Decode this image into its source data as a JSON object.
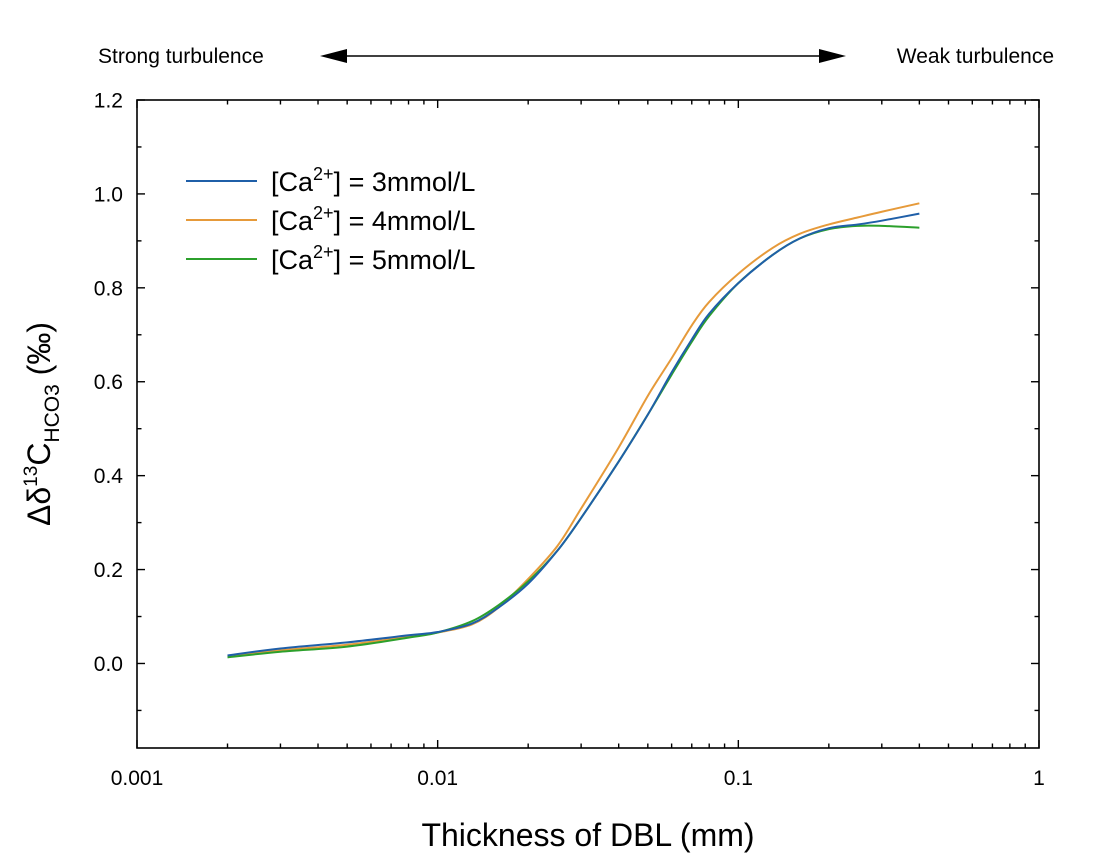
{
  "chart_data": {
    "type": "line",
    "x_scale": "log",
    "xlim": [
      0.001,
      1
    ],
    "ylim": [
      -0.18,
      1.2
    ],
    "xlabel": "Thickness of DBL (mm)",
    "ylabel": {
      "prefix": "Δδ",
      "sup": "13",
      "base": "C",
      "sub": "HCO3",
      "unit": " (‰)"
    },
    "x_ticks": [
      {
        "value": 0.001,
        "label": "0.001"
      },
      {
        "value": 0.01,
        "label": "0.01"
      },
      {
        "value": 0.1,
        "label": "0.1"
      },
      {
        "value": 1,
        "label": "1"
      }
    ],
    "y_ticks": [
      {
        "value": 0.0,
        "label": "0.0"
      },
      {
        "value": 0.2,
        "label": "0.2"
      },
      {
        "value": 0.4,
        "label": "0.4"
      },
      {
        "value": 0.6,
        "label": "0.6"
      },
      {
        "value": 0.8,
        "label": "0.8"
      },
      {
        "value": 1.0,
        "label": "1.0"
      },
      {
        "value": 1.2,
        "label": "1.2"
      }
    ],
    "y_minor_step": 0.1,
    "annotation": {
      "left": "Strong turbulence",
      "right": "Weak turbulence"
    },
    "legend_position": "top-left",
    "series": [
      {
        "name": {
          "pre": "[Ca",
          "sup": "2+",
          "post": "] = 3mmol/L"
        },
        "color": "#1f5fa8",
        "x": [
          0.002,
          0.003,
          0.005,
          0.008,
          0.01,
          0.013,
          0.016,
          0.02,
          0.025,
          0.03,
          0.04,
          0.05,
          0.06,
          0.07,
          0.08,
          0.1,
          0.13,
          0.16,
          0.2,
          0.25,
          0.3,
          0.4
        ],
        "y": [
          0.017,
          0.032,
          0.045,
          0.06,
          0.067,
          0.085,
          0.12,
          0.17,
          0.24,
          0.31,
          0.43,
          0.53,
          0.62,
          0.69,
          0.745,
          0.81,
          0.87,
          0.905,
          0.927,
          0.935,
          0.943,
          0.958
        ]
      },
      {
        "name": {
          "pre": "[Ca",
          "sup": "2+",
          "post": "] = 4mmol/L"
        },
        "color": "#e69a3a",
        "x": [
          0.002,
          0.003,
          0.005,
          0.008,
          0.01,
          0.013,
          0.016,
          0.02,
          0.025,
          0.03,
          0.04,
          0.05,
          0.06,
          0.07,
          0.08,
          0.1,
          0.13,
          0.16,
          0.2,
          0.25,
          0.3,
          0.4
        ],
        "y": [
          0.015,
          0.028,
          0.04,
          0.057,
          0.066,
          0.083,
          0.12,
          0.18,
          0.25,
          0.33,
          0.46,
          0.57,
          0.65,
          0.72,
          0.77,
          0.83,
          0.885,
          0.915,
          0.935,
          0.95,
          0.962,
          0.98
        ]
      },
      {
        "name": {
          "pre": "[Ca",
          "sup": "2+",
          "post": "] = 5mmol/L"
        },
        "color": "#2ca02c",
        "x": [
          0.002,
          0.003,
          0.005,
          0.008,
          0.01,
          0.013,
          0.016,
          0.02,
          0.025,
          0.03,
          0.04,
          0.05,
          0.06,
          0.07,
          0.08,
          0.1,
          0.13,
          0.16,
          0.2,
          0.25,
          0.3,
          0.4
        ],
        "y": [
          0.013,
          0.025,
          0.036,
          0.055,
          0.066,
          0.09,
          0.125,
          0.175,
          0.24,
          0.31,
          0.43,
          0.53,
          0.615,
          0.685,
          0.74,
          0.81,
          0.87,
          0.905,
          0.925,
          0.932,
          0.932,
          0.928
        ]
      }
    ]
  }
}
